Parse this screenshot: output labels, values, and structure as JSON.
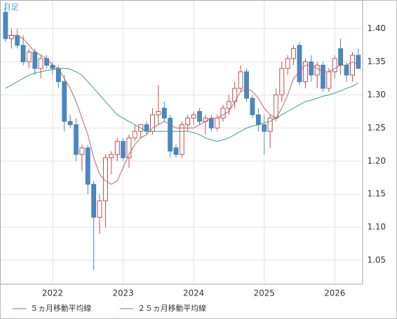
{
  "chart_data": {
    "type": "candlestick",
    "period_label": "月足",
    "categories": [
      null,
      null,
      null,
      null,
      null,
      null,
      null,
      null,
      "2022",
      null,
      null,
      null,
      null,
      null,
      null,
      null,
      null,
      null,
      null,
      null,
      "2023",
      null,
      null,
      null,
      null,
      null,
      null,
      null,
      null,
      null,
      null,
      null,
      "2024",
      null,
      null,
      null,
      null,
      null,
      null,
      null,
      null,
      null,
      null,
      null,
      "2025",
      null,
      null,
      null,
      null,
      null,
      null,
      null,
      null,
      null,
      null,
      null,
      "2026",
      null,
      null,
      null,
      null
    ],
    "open": [
      1.425,
      1.385,
      1.39,
      1.375,
      1.35,
      1.365,
      1.34,
      1.355,
      1.345,
      1.34,
      1.32,
      1.26,
      1.255,
      1.21,
      1.22,
      1.165,
      1.115,
      1.14,
      1.205,
      1.21,
      1.23,
      1.205,
      1.235,
      1.245,
      1.255,
      1.245,
      1.27,
      1.28,
      1.265,
      1.22,
      1.21,
      1.255,
      1.265,
      1.275,
      1.26,
      1.265,
      1.25,
      1.265,
      1.28,
      1.29,
      1.31,
      1.335,
      1.295,
      1.27,
      1.255,
      1.245,
      1.265,
      1.3,
      1.34,
      1.355,
      1.375,
      1.32,
      1.35,
      1.33,
      1.345,
      1.31,
      1.335,
      1.37,
      1.345,
      1.33,
      1.36
    ],
    "high": [
      1.44,
      1.4,
      1.4,
      1.39,
      1.37,
      1.37,
      1.36,
      1.36,
      1.35,
      1.345,
      1.33,
      1.27,
      1.265,
      1.225,
      1.225,
      1.17,
      1.15,
      1.21,
      1.215,
      1.235,
      1.235,
      1.24,
      1.255,
      1.255,
      1.26,
      1.28,
      1.315,
      1.29,
      1.27,
      1.225,
      1.26,
      1.27,
      1.275,
      1.28,
      1.27,
      1.27,
      1.27,
      1.285,
      1.3,
      1.32,
      1.345,
      1.34,
      1.3,
      1.28,
      1.27,
      1.27,
      1.31,
      1.35,
      1.36,
      1.375,
      1.38,
      1.355,
      1.36,
      1.35,
      1.35,
      1.34,
      1.36,
      1.385,
      1.35,
      1.365,
      1.37
    ],
    "low": [
      1.38,
      1.37,
      1.37,
      1.345,
      1.34,
      1.33,
      1.325,
      1.34,
      1.33,
      1.31,
      1.245,
      1.25,
      1.2,
      1.185,
      1.15,
      1.035,
      1.09,
      1.1,
      1.18,
      1.2,
      1.2,
      1.19,
      1.23,
      1.235,
      1.24,
      1.24,
      1.255,
      1.26,
      1.205,
      1.205,
      1.205,
      1.245,
      1.255,
      1.255,
      1.24,
      1.245,
      1.245,
      1.26,
      1.27,
      1.28,
      1.305,
      1.29,
      1.265,
      1.245,
      1.21,
      1.22,
      1.26,
      1.29,
      1.33,
      1.345,
      1.315,
      1.31,
      1.32,
      1.31,
      1.305,
      1.305,
      1.325,
      1.33,
      1.32,
      1.32,
      1.34
    ],
    "close": [
      1.385,
      1.39,
      1.375,
      1.35,
      1.365,
      1.34,
      1.355,
      1.345,
      1.34,
      1.32,
      1.26,
      1.255,
      1.21,
      1.22,
      1.165,
      1.115,
      1.14,
      1.205,
      1.21,
      1.23,
      1.205,
      1.235,
      1.245,
      1.255,
      1.245,
      1.27,
      1.275,
      1.265,
      1.215,
      1.21,
      1.255,
      1.265,
      1.27,
      1.26,
      1.265,
      1.25,
      1.265,
      1.28,
      1.29,
      1.31,
      1.335,
      1.295,
      1.27,
      1.255,
      1.245,
      1.265,
      1.3,
      1.34,
      1.355,
      1.37,
      1.32,
      1.35,
      1.33,
      1.345,
      1.31,
      1.335,
      1.355,
      1.345,
      1.33,
      1.36,
      1.34
    ],
    "up_color": "#c0504d",
    "down_color": "#4a87bf",
    "series": [
      {
        "name": "５ヵ月移動平均線",
        "color": "#c0606a",
        "values": [
          1.39,
          1.39,
          1.39,
          1.385,
          1.375,
          1.365,
          1.36,
          1.355,
          1.345,
          1.34,
          1.325,
          1.31,
          1.29,
          1.265,
          1.24,
          1.205,
          1.18,
          1.17,
          1.165,
          1.17,
          1.19,
          1.21,
          1.225,
          1.235,
          1.24,
          1.25,
          1.255,
          1.26,
          1.255,
          1.25,
          1.25,
          1.25,
          1.25,
          1.255,
          1.26,
          1.265,
          1.265,
          1.27,
          1.275,
          1.29,
          1.305,
          1.31,
          1.305,
          1.295,
          1.28,
          1.27,
          1.265,
          1.28,
          1.3,
          1.325,
          1.335,
          1.345,
          1.345,
          1.34,
          1.335,
          1.335,
          1.34,
          1.345,
          1.345,
          1.35,
          1.345
        ]
      },
      {
        "name": "２５ヵ月移動平均線",
        "color": "#3a9f86",
        "values": [
          1.31,
          1.315,
          1.32,
          1.325,
          1.33,
          1.333,
          1.335,
          1.337,
          1.338,
          1.34,
          1.34,
          1.339,
          1.335,
          1.33,
          1.32,
          1.31,
          1.3,
          1.29,
          1.28,
          1.27,
          1.265,
          1.26,
          1.255,
          1.25,
          1.245,
          1.245,
          1.245,
          1.245,
          1.245,
          1.245,
          1.245,
          1.245,
          1.243,
          1.24,
          1.235,
          1.232,
          1.23,
          1.232,
          1.235,
          1.24,
          1.245,
          1.25,
          1.253,
          1.255,
          1.258,
          1.26,
          1.265,
          1.27,
          1.275,
          1.28,
          1.285,
          1.29,
          1.292,
          1.295,
          1.298,
          1.3,
          1.303,
          1.306,
          1.31,
          1.313,
          1.318
        ]
      }
    ],
    "ylim": [
      1.0135,
      1.4435
    ],
    "yticks": [
      1.05,
      {
        "value": 1.1,
        "label": "1.10"
      },
      1.15,
      {
        "value": 1.2,
        "label": "1.20"
      },
      1.25,
      {
        "value": 1.3,
        "label": "1.30"
      },
      1.35,
      {
        "value": 1.4,
        "label": "1.40"
      }
    ],
    "grid": true
  }
}
